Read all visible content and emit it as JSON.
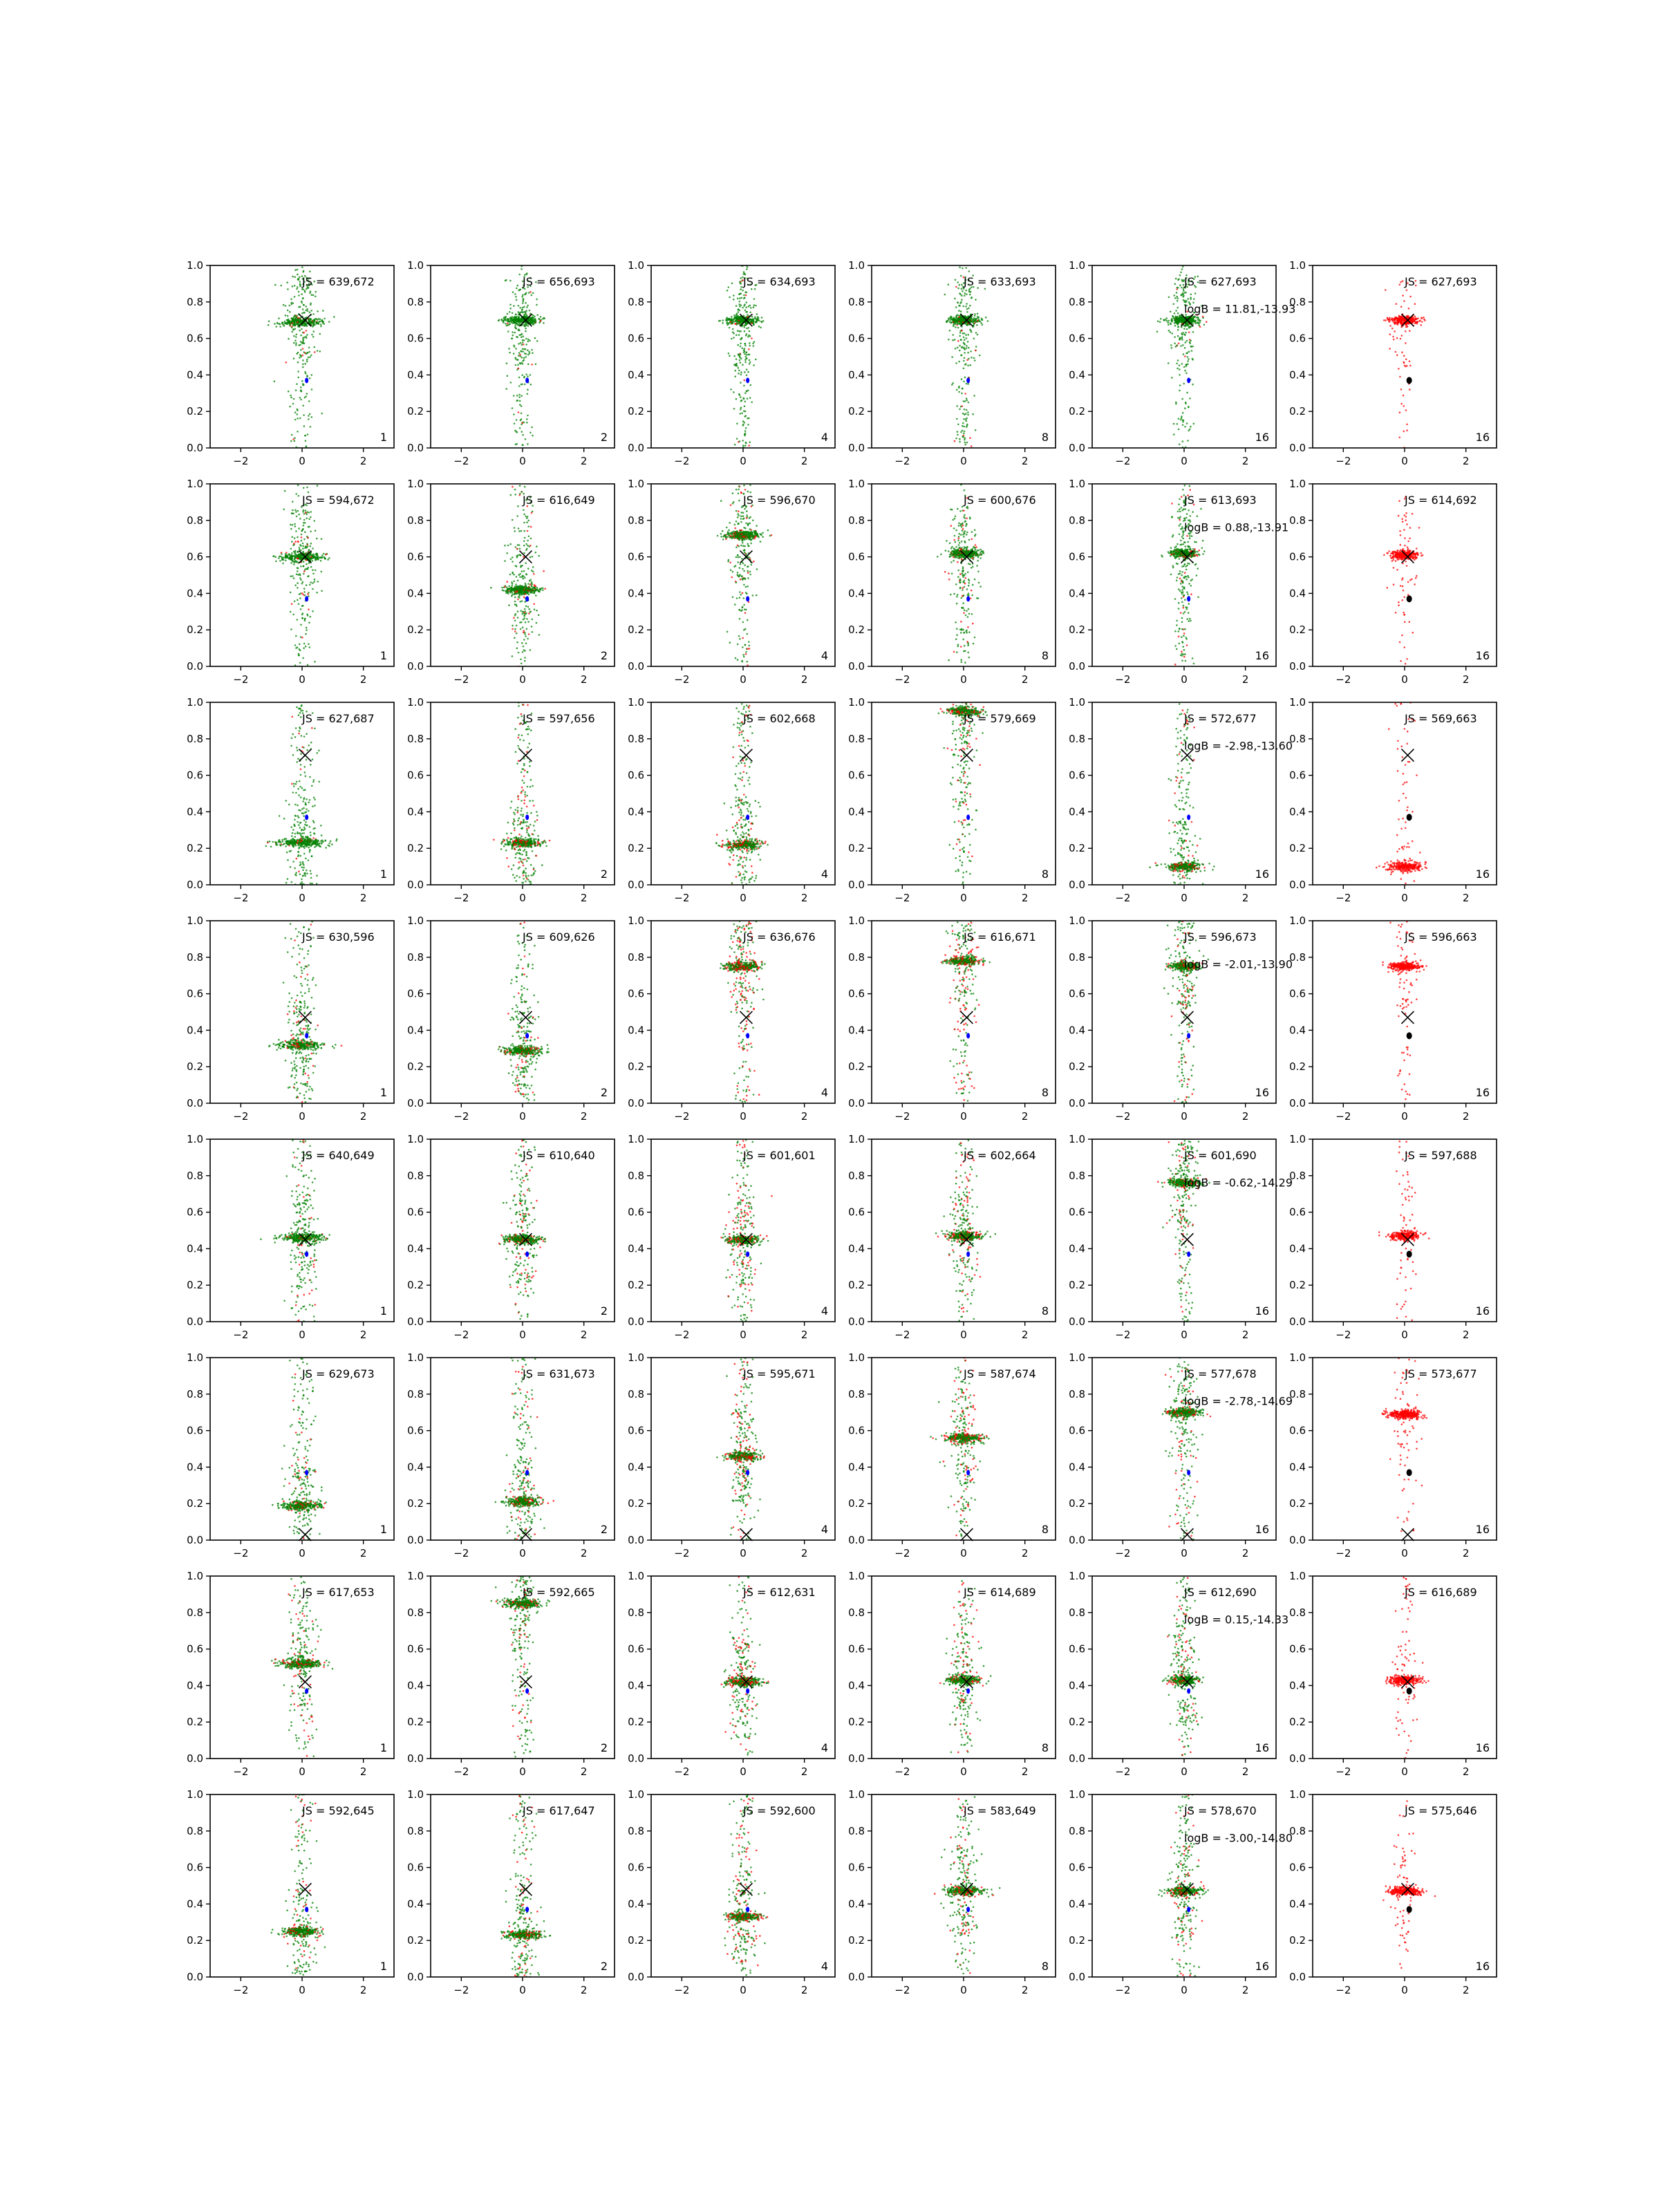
{
  "chart_data": {
    "type": "scatter",
    "grid": false,
    "legend": "none",
    "rows": 8,
    "cols": 6,
    "xlim": [
      -3,
      3
    ],
    "ylim": [
      0,
      1
    ],
    "xticks": [
      -2,
      0,
      2
    ],
    "yticks": [
      0.0,
      0.2,
      0.4,
      0.6,
      0.8,
      1.0
    ],
    "xtick_labels": [
      "−2",
      "0",
      "2"
    ],
    "ytick_labels": [
      "0.0",
      "0.2",
      "0.4",
      "0.6",
      "0.8",
      "1.0"
    ],
    "colors": {
      "red_points": "#ff0000",
      "green_points": "#008000",
      "blue_marker": "#0000ff",
      "black_marker": "#000000",
      "cross": "#000000"
    },
    "panel_labels": [
      "1",
      "2",
      "4",
      "8",
      "16",
      "16"
    ],
    "rows_data": [
      {
        "cross_y": 0.7,
        "blue_y": 0.37,
        "js": [
          "JS = 639,672",
          "JS = 656,693",
          "JS = 634,693",
          "JS = 633,693",
          "JS = 627,693",
          "JS = 627,693"
        ],
        "logB": "logB = 11.81,-13.93",
        "bands": [
          [
            0.69,
            0.95,
            0.36
          ],
          [
            0.7,
            0.98,
            0.3
          ],
          [
            0.7,
            0.97,
            0.25
          ],
          [
            0.7,
            0.95,
            0.25
          ],
          [
            0.7,
            0.95,
            0.25
          ],
          [
            0.7,
            0.0,
            0.25
          ]
        ]
      },
      {
        "cross_y": 0.6,
        "blue_y": 0.37,
        "js": [
          "JS = 594,672",
          "JS = 616,649",
          "JS = 596,670",
          "JS = 600,676",
          "JS = 613,693",
          "JS = 614,692"
        ],
        "logB": "logB = 0.88,-13.91",
        "bands": [
          [
            0.6,
            0.93,
            0.35
          ],
          [
            0.42,
            0.9,
            0.3
          ],
          [
            0.72,
            0.85,
            0.28
          ],
          [
            0.62,
            0.85,
            0.26
          ],
          [
            0.62,
            0.9,
            0.22
          ],
          [
            0.61,
            0.0,
            0.22
          ]
        ]
      },
      {
        "cross_y": 0.71,
        "blue_y": 0.37,
        "js": [
          "JS = 627,687",
          "JS = 597,656",
          "JS = 602,668",
          "JS = 579,669",
          "JS = 572,677",
          "JS = 569,663"
        ],
        "logB": "logB = -2.98,-13.60",
        "bands": [
          [
            0.23,
            0.95,
            0.4
          ],
          [
            0.23,
            0.8,
            0.3
          ],
          [
            0.22,
            0.8,
            0.3
          ],
          [
            0.95,
            0.8,
            0.3
          ],
          [
            0.1,
            0.8,
            0.3
          ],
          [
            0.1,
            0.0,
            0.3
          ]
        ]
      },
      {
        "cross_y": 0.47,
        "blue_y": 0.37,
        "js": [
          "JS = 630,596",
          "JS = 609,626",
          "JS = 636,676",
          "JS = 616,671",
          "JS = 596,673",
          "JS = 596,663"
        ],
        "logB": "logB = -2.01,-13.90",
        "bands": [
          [
            0.32,
            0.9,
            0.38
          ],
          [
            0.29,
            0.85,
            0.3
          ],
          [
            0.75,
            0.6,
            0.3
          ],
          [
            0.78,
            0.7,
            0.28
          ],
          [
            0.75,
            0.8,
            0.25
          ],
          [
            0.75,
            0.0,
            0.25
          ]
        ]
      },
      {
        "cross_y": 0.45,
        "blue_y": 0.37,
        "js": [
          "JS = 640,649",
          "JS = 610,640",
          "JS = 601,601",
          "JS = 602,664",
          "JS = 601,690",
          "JS = 597,688"
        ],
        "logB": "logB = -0.62,-14.29",
        "bands": [
          [
            0.46,
            0.9,
            0.35
          ],
          [
            0.45,
            0.8,
            0.3
          ],
          [
            0.45,
            0.7,
            0.3
          ],
          [
            0.47,
            0.75,
            0.28
          ],
          [
            0.76,
            0.8,
            0.25
          ],
          [
            0.47,
            0.0,
            0.25
          ]
        ]
      },
      {
        "cross_y": 0.03,
        "blue_y": 0.37,
        "js": [
          "JS = 629,673",
          "JS = 631,673",
          "JS = 595,671",
          "JS = 587,674",
          "JS = 577,678",
          "JS = 573,677"
        ],
        "logB": "logB = -2.78,-14.69",
        "bands": [
          [
            0.19,
            0.85,
            0.35
          ],
          [
            0.21,
            0.8,
            0.3
          ],
          [
            0.46,
            0.7,
            0.3
          ],
          [
            0.56,
            0.7,
            0.3
          ],
          [
            0.7,
            0.8,
            0.3
          ],
          [
            0.69,
            0.0,
            0.3
          ]
        ]
      },
      {
        "cross_y": 0.42,
        "blue_y": 0.37,
        "js": [
          "JS = 617,653",
          "JS = 592,665",
          "JS = 612,631",
          "JS = 614,689",
          "JS = 612,690",
          "JS = 616,689"
        ],
        "logB": "logB = 0.15,-14.33",
        "bands": [
          [
            0.52,
            0.8,
            0.35
          ],
          [
            0.85,
            0.8,
            0.3
          ],
          [
            0.42,
            0.75,
            0.3
          ],
          [
            0.43,
            0.8,
            0.28
          ],
          [
            0.43,
            0.8,
            0.25
          ],
          [
            0.43,
            0.0,
            0.25
          ]
        ]
      },
      {
        "cross_y": 0.48,
        "blue_y": 0.37,
        "js": [
          "JS = 592,645",
          "JS = 617,647",
          "JS = 592,600",
          "JS = 583,649",
          "JS = 578,670",
          "JS = 575,646"
        ],
        "logB": "logB = -3.00,-14.80",
        "bands": [
          [
            0.25,
            0.8,
            0.3
          ],
          [
            0.23,
            0.8,
            0.3
          ],
          [
            0.33,
            0.7,
            0.3
          ],
          [
            0.47,
            0.75,
            0.3
          ],
          [
            0.47,
            0.8,
            0.28
          ],
          [
            0.47,
            0.0,
            0.28
          ]
        ]
      }
    ]
  }
}
